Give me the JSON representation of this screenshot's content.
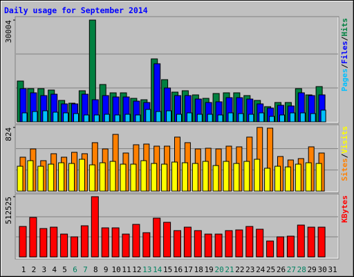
{
  "chart_data": {
    "type": "bar",
    "title": "Daily usage for September 2014",
    "categories": [
      "1",
      "2",
      "3",
      "4",
      "5",
      "6",
      "7",
      "8",
      "9",
      "10",
      "11",
      "12",
      "13",
      "14",
      "15",
      "16",
      "17",
      "18",
      "19",
      "20",
      "21",
      "22",
      "23",
      "24",
      "25",
      "26",
      "27",
      "28",
      "29",
      "30",
      "31"
    ],
    "highlight_indices": [
      5,
      6,
      12,
      13,
      19,
      20,
      26,
      27
    ],
    "highlight_color": "#008060",
    "label_color": "#000000",
    "title_color": "#0000ff",
    "legend_separator": "/",
    "panels": [
      {
        "ylim": [
          0,
          30004
        ],
        "yticks": [
          30004
        ],
        "series": [
          {
            "name": "Hits",
            "color": "#008040",
            "values": [
              12042,
              9797,
              9797,
              9389,
              6327,
              5511,
              9185,
              30004,
              11021,
              8572,
              8572,
              6939,
              6531,
              18573,
              12450,
              8776,
              9185,
              7960,
              6939,
              8368,
              8572,
              8572,
              7756,
              6327,
              4490,
              5715,
              5715,
              9797,
              7960,
              10409,
              0
            ]
          },
          {
            "name": "Files",
            "color": "#0000ff",
            "values": [
              9797,
              8572,
              7756,
              8164,
              5307,
              5307,
              8164,
              6531,
              7756,
              7348,
              7348,
              6123,
              5715,
              17144,
              10001,
              7756,
              7756,
              6735,
              5715,
              5919,
              7144,
              7144,
              6735,
              5307,
              4082,
              4898,
              4694,
              8572,
              7756,
              7960,
              0
            ]
          },
          {
            "name": "Pages",
            "color": "#00c0ff",
            "values": [
              2653,
              3062,
              3266,
              2857,
              2653,
              2449,
              2041,
              2041,
              2245,
              2041,
              2245,
              2041,
              3674,
              3062,
              3266,
              2245,
              2653,
              2245,
              2245,
              2041,
              2653,
              2449,
              2245,
              2653,
              1633,
              2041,
              2653,
              2653,
              2449,
              3470,
              0
            ]
          }
        ]
      },
      {
        "ylim": [
          0,
          824
        ],
        "yticks": [
          824
        ],
        "series": [
          {
            "name": "Visits",
            "color": "#ffff00",
            "values": [
              322,
              394,
              322,
              349,
              367,
              358,
              412,
              340,
              367,
              385,
              349,
              349,
              394,
              358,
              349,
              376,
              367,
              358,
              385,
              331,
              385,
              358,
              385,
              412,
              296,
              322,
              313,
              349,
              367,
              358,
              0
            ]
          },
          {
            "name": "Sites",
            "color": "#ff8000",
            "values": [
              439,
              546,
              394,
              484,
              439,
              502,
              484,
              627,
              546,
              734,
              493,
              600,
              609,
              582,
              582,
              699,
              627,
              546,
              555,
              546,
              582,
              573,
              699,
              824,
              815,
              448,
              403,
              421,
              573,
              493,
              0
            ]
          }
        ]
      },
      {
        "ylim": [
          0,
          512525
        ],
        "yticks": [
          512525
        ],
        "series": [
          {
            "name": "KBytes",
            "color": "#ff0000",
            "values": [
              259204,
              335787,
              241531,
              253313,
              194403,
              170839,
              265095,
              512525,
              247422,
              247422,
              194403,
              276877,
              206185,
              329896,
              294550,
              223858,
              253313,
              223858,
              194403,
              194403,
              223858,
              229749,
              259204,
              235640,
              135493,
              170839,
              176730,
              270986,
              253313,
              253313,
              0
            ]
          }
        ]
      }
    ]
  }
}
